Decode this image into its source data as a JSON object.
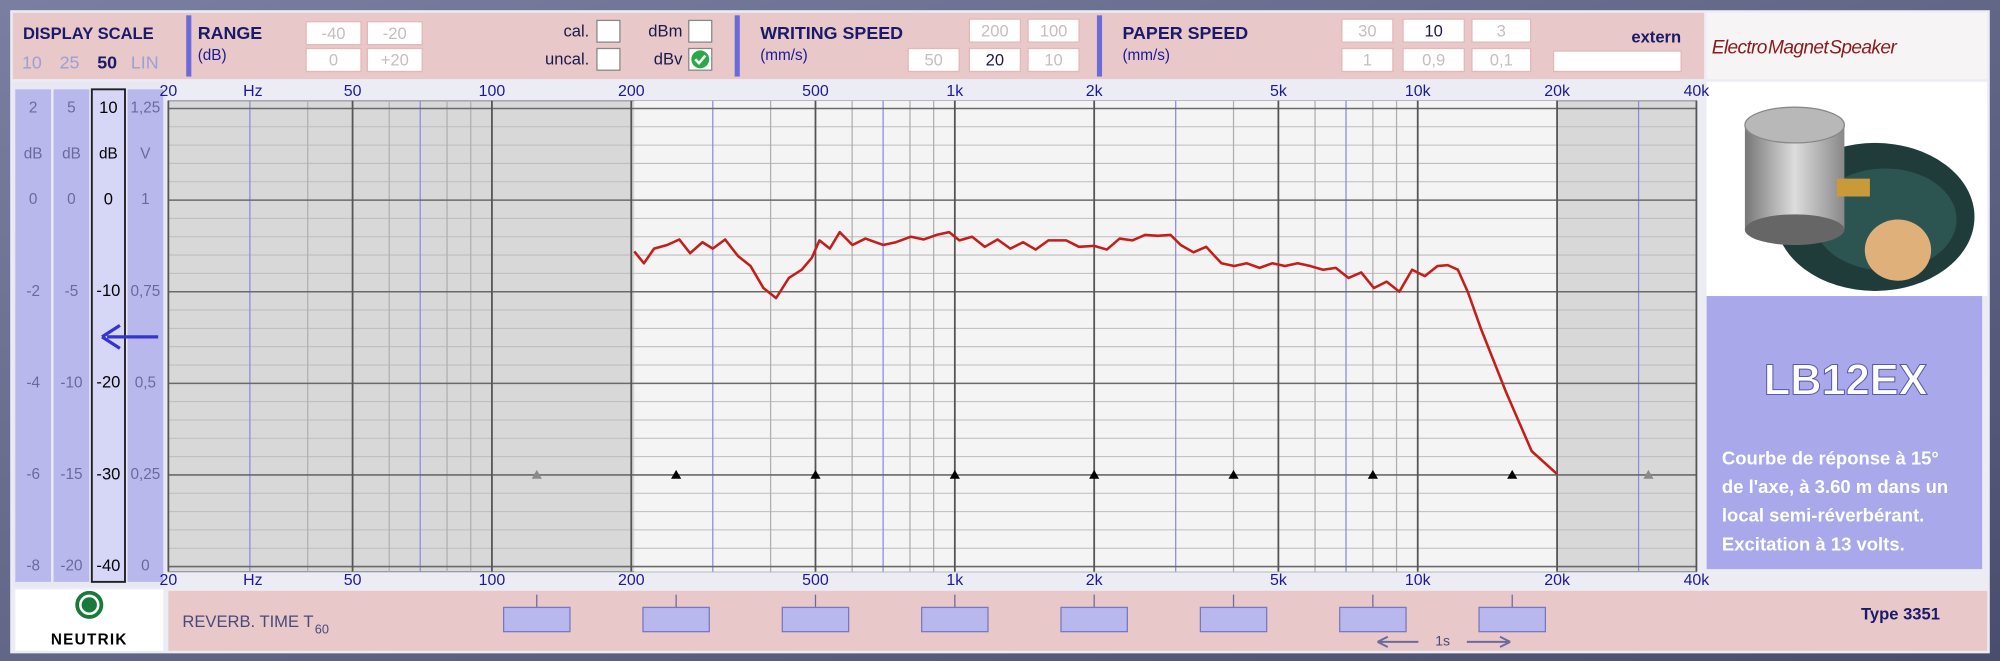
{
  "chart_data": {
    "type": "line",
    "x_scale": "log",
    "x_unit": "Hz",
    "y_unit": "dB",
    "xlim": [
      20,
      40000
    ],
    "ylim": [
      -40,
      10
    ],
    "xticks": [
      20,
      50,
      100,
      200,
      500,
      {
        "value": 1000,
        "label": "1k"
      },
      {
        "value": 2000,
        "label": "2k"
      },
      {
        "value": 5000,
        "label": "5k"
      },
      {
        "value": 10000,
        "label": "10k"
      },
      {
        "value": 20000,
        "label": "20k"
      },
      {
        "value": 40000,
        "label": "40k"
      }
    ],
    "yticks": [
      10,
      0,
      -10,
      -20,
      -30,
      -40
    ],
    "grid": true,
    "series": [
      {
        "color": "#c41e1a",
        "x": [
          203,
          213,
          224,
          239,
          254,
          268,
          285,
          300,
          319,
          340,
          362,
          386,
          411,
          438,
          467,
          491,
          510,
          537,
          564,
          601,
          641,
          700,
          746,
          804,
          857,
          913,
          972,
          1023,
          1090,
          1161,
          1237,
          1318,
          1404,
          1495,
          1593,
          1740,
          1854,
          2000,
          2130,
          2270,
          2418,
          2576,
          2744,
          2924,
          3076,
          3277,
          3491,
          3766,
          4012,
          4274,
          4553,
          4850,
          5166,
          5504,
          5862,
          6245,
          6653,
          7088,
          7550,
          8042,
          8568,
          9126,
          9723,
          10358,
          11035,
          11608,
          12212,
          12846,
          13684,
          15530,
          17624,
          20000
        ],
        "values": [
          -5.6,
          -6.9,
          -5.3,
          -4.9,
          -4.3,
          -5.8,
          -4.6,
          -5.3,
          -4.3,
          -6.1,
          -7.2,
          -9.6,
          -10.7,
          -8.5,
          -7.6,
          -6.3,
          -4.4,
          -5.3,
          -3.5,
          -4.9,
          -4.2,
          -4.9,
          -4.6,
          -4.0,
          -4.3,
          -3.8,
          -3.5,
          -4.4,
          -4.0,
          -5.1,
          -4.3,
          -5.3,
          -4.6,
          -5.4,
          -4.4,
          -4.4,
          -5.1,
          -5.0,
          -5.4,
          -4.2,
          -4.4,
          -3.8,
          -3.9,
          -3.8,
          -4.9,
          -5.7,
          -5.1,
          -6.9,
          -7.2,
          -6.9,
          -7.4,
          -6.9,
          -7.2,
          -6.9,
          -7.2,
          -7.6,
          -7.4,
          -8.5,
          -7.9,
          -9.6,
          -8.9,
          -10.0,
          -7.6,
          -8.3,
          -7.2,
          -7.1,
          -7.6,
          -10.1,
          -14.0,
          -21.0,
          -27.4,
          -29.9
        ]
      }
    ],
    "markers": {
      "x": [
        125,
        250,
        500,
        1000,
        2000,
        4000,
        8000,
        16000,
        31500
      ],
      "values": [
        -30,
        -30,
        -30,
        -30,
        -30,
        -30,
        -30,
        -30,
        -30
      ],
      "colors": [
        "#8a8a8a",
        "#000000",
        "#000000",
        "#000000",
        "#000000",
        "#000000",
        "#000000",
        "#000000",
        "#8a8a8a"
      ]
    }
  },
  "ui": {
    "display_scale": {
      "title": "DISPLAY SCALE",
      "options": [
        "10",
        "25",
        "50",
        "LIN"
      ],
      "active": 2
    },
    "scale_columns": [
      [
        "2",
        "dB",
        "0",
        "-2",
        "-4",
        "-6",
        "-8"
      ],
      [
        "5",
        "dB",
        "0",
        "-5",
        "-10",
        "-15",
        "-20"
      ],
      [
        "1,25",
        "V",
        "1",
        "0,75",
        "0,5",
        "0,25",
        "0"
      ]
    ],
    "range": {
      "title": "RANGE",
      "unit": "(dB)",
      "options": [
        "-40",
        "-20",
        "0",
        "+20"
      ]
    },
    "calibration": [
      "cal.",
      "uncal."
    ],
    "level": {
      "options": [
        "dBm",
        "dBv"
      ],
      "checked": 1
    },
    "writing_speed": {
      "title": "WRITING SPEED",
      "unit": "(mm/s)",
      "options": [
        "200",
        "100",
        "50",
        "20",
        "10"
      ],
      "active": 3
    },
    "paper_speed": {
      "title": "PAPER SPEED",
      "unit": "(mm/s)",
      "options": [
        "30",
        "10",
        "3",
        "1",
        "0,9",
        "0,1"
      ],
      "active": 1
    },
    "extern": "extern",
    "logo": [
      "Electro",
      "Magnet",
      "Speaker"
    ],
    "product": {
      "model": "LB12EX",
      "description": [
        "Courbe de réponse  à 15°",
        "de l'axe, à 3.60 m dans un",
        "local semi-réverbérant.",
        "Excitation à 13 volts."
      ]
    },
    "footer": {
      "reverb": "REVERB. TIME T",
      "reverb_sub": "60",
      "time_scale": "1s",
      "type": "Type 3351"
    },
    "brand": "NEUTRIK"
  }
}
